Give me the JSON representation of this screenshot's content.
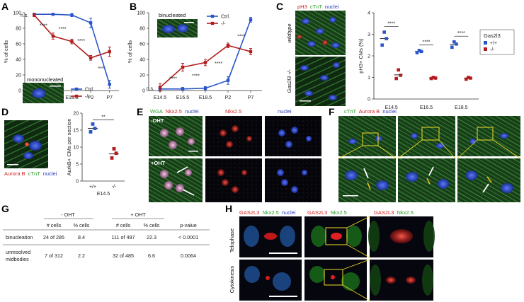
{
  "panels": {
    "A": {
      "letter": "A",
      "inset_label": "mononucleated",
      "sig": [
        "n.s.",
        "****",
        "****",
        "****",
        "***"
      ]
    },
    "B": {
      "letter": "B",
      "inset_label": "binucleated",
      "sig": [
        "n.s.",
        "****",
        "****",
        "****",
        "****"
      ]
    },
    "C": {
      "letter": "C",
      "img_title": {
        "a": "pH3",
        "b": "cTnT",
        "c": "nuclei"
      },
      "row_labels": [
        "wildtype",
        "Gas2l3 -/-"
      ],
      "sig": [
        "****",
        "****",
        "****"
      ],
      "legend_title": "Gas2l3",
      "legend_items": [
        "+/+",
        "-/-"
      ]
    },
    "D": {
      "letter": "D",
      "img_caption": {
        "a": "Aurora B",
        "b": "cTnT",
        "c": "nuclei"
      },
      "sig": "**",
      "group_label": "E14.5"
    },
    "E": {
      "letter": "E",
      "col_headers": {
        "wga": "WGA",
        "nkx": "Nkx2.5",
        "nuc": "nuclei"
      },
      "row_labels": [
        "-OHT",
        "+OHT"
      ]
    },
    "F": {
      "letter": "F",
      "header": {
        "a": "cTnT",
        "b": "Aurora B",
        "c": "nuclei"
      }
    },
    "G": {
      "letter": "G",
      "group_headers": [
        "- OHT",
        "+ OHT"
      ],
      "col_headers": [
        "# cells",
        "% cells",
        "# cells",
        "% cells",
        "p-value"
      ],
      "rows": [
        {
          "label": [
            "binucleation"
          ],
          "cells": [
            "24 of 285",
            "8.4",
            "111 of 497",
            "22.3",
            "< 0.0001"
          ]
        },
        {
          "label": [
            "unresolved",
            "midbodies"
          ],
          "cells": [
            "7 of 312",
            "2.2",
            "32 of 485",
            "6.6",
            "0.0064"
          ]
        }
      ]
    },
    "H": {
      "letter": "H",
      "headers": [
        {
          "a": "GAS2L3",
          "b": "Nkx2.5",
          "c": "nuclei"
        },
        {
          "a": "GAS2L3",
          "b": "Nkx2.5"
        },
        {
          "a": "GAS2L3",
          "b": "Nkx2.5"
        }
      ],
      "row_labels": [
        "Telophase",
        "Cytokinesis"
      ]
    }
  },
  "colors": {
    "ctrl": "#2a55c8",
    "ko": "#b21c1c",
    "micro_bg": "#0f2411",
    "green": "#4fc84a",
    "red": "#e02222",
    "blue": "#3a55e0",
    "yellow": "#f0dc2a"
  },
  "chart_data": [
    {
      "id": "A",
      "type": "line",
      "categories": [
        "E14.5",
        "E16.5",
        "E18.5",
        "P2",
        "P7"
      ],
      "ylabel": "% of cells",
      "ylim": [
        0,
        100
      ],
      "yticks": [
        0,
        20,
        40,
        60,
        80,
        100
      ],
      "legend_position": "bottom-right",
      "series": [
        {
          "name": "Ctrl.",
          "color": "#2a55c8",
          "values": [
            98,
            98,
            97,
            87,
            8
          ],
          "errors": [
            1,
            1,
            2,
            6,
            5
          ]
        },
        {
          "name": "-/-",
          "color": "#b21c1c",
          "values": [
            97,
            70,
            63,
            42,
            50
          ],
          "errors": [
            2,
            4,
            3,
            3,
            6
          ]
        }
      ]
    },
    {
      "id": "B",
      "type": "line",
      "categories": [
        "E14.5",
        "E16.5",
        "E18.5",
        "P2",
        "P7"
      ],
      "ylabel": "% of cells",
      "ylim": [
        0,
        100
      ],
      "yticks": [
        0,
        20,
        40,
        60,
        80,
        100
      ],
      "legend_position": "top-right",
      "series": [
        {
          "name": "Ctrl.",
          "color": "#2a55c8",
          "values": [
            2,
            2,
            3,
            13,
            91
          ],
          "errors": [
            1,
            2,
            2,
            5,
            3
          ]
        },
        {
          "name": "-/-",
          "color": "#b21c1c",
          "values": [
            4,
            30,
            36,
            58,
            50
          ],
          "errors": [
            5,
            5,
            4,
            3,
            4
          ]
        }
      ]
    },
    {
      "id": "C",
      "type": "scatter",
      "categories": [
        "E14.5",
        "E16.5",
        "E18.5"
      ],
      "ylabel": "pH3+ CMs (%)",
      "ylim": [
        0,
        4
      ],
      "yticks": [
        0,
        1,
        2,
        3,
        4
      ],
      "legend_position": "top-right",
      "series": [
        {
          "name": "+/+",
          "color": "#2a55c8",
          "points": [
            [
              2.5,
              2.8,
              3.1
            ],
            [
              2.15,
              2.2,
              2.25
            ],
            [
              2.4,
              2.55,
              2.65
            ]
          ],
          "means": [
            2.8,
            2.2,
            2.53
          ]
        },
        {
          "name": "-/-",
          "color": "#b21c1c",
          "points": [
            [
              0.95,
              1.1,
              1.35
            ],
            [
              0.95,
              0.97,
              1.0
            ],
            [
              0.92,
              0.97,
              1.0
            ]
          ],
          "means": [
            1.12,
            0.97,
            0.96
          ]
        }
      ]
    },
    {
      "id": "D",
      "type": "scatter",
      "categories": [
        "+/+",
        "-/-"
      ],
      "ylabel": "AurkB+ CMs per section",
      "ylim": [
        0,
        20
      ],
      "yticks": [
        0,
        5,
        10,
        15,
        20
      ],
      "series": [
        {
          "name": "+/+",
          "color": "#2a55c8",
          "points": [
            14.5,
            15.5,
            16.8
          ],
          "mean": 15.5
        },
        {
          "name": "-/-",
          "color": "#b21c1c",
          "points": [
            6.8,
            8.2,
            9.5
          ],
          "mean": 8.0
        }
      ]
    }
  ]
}
